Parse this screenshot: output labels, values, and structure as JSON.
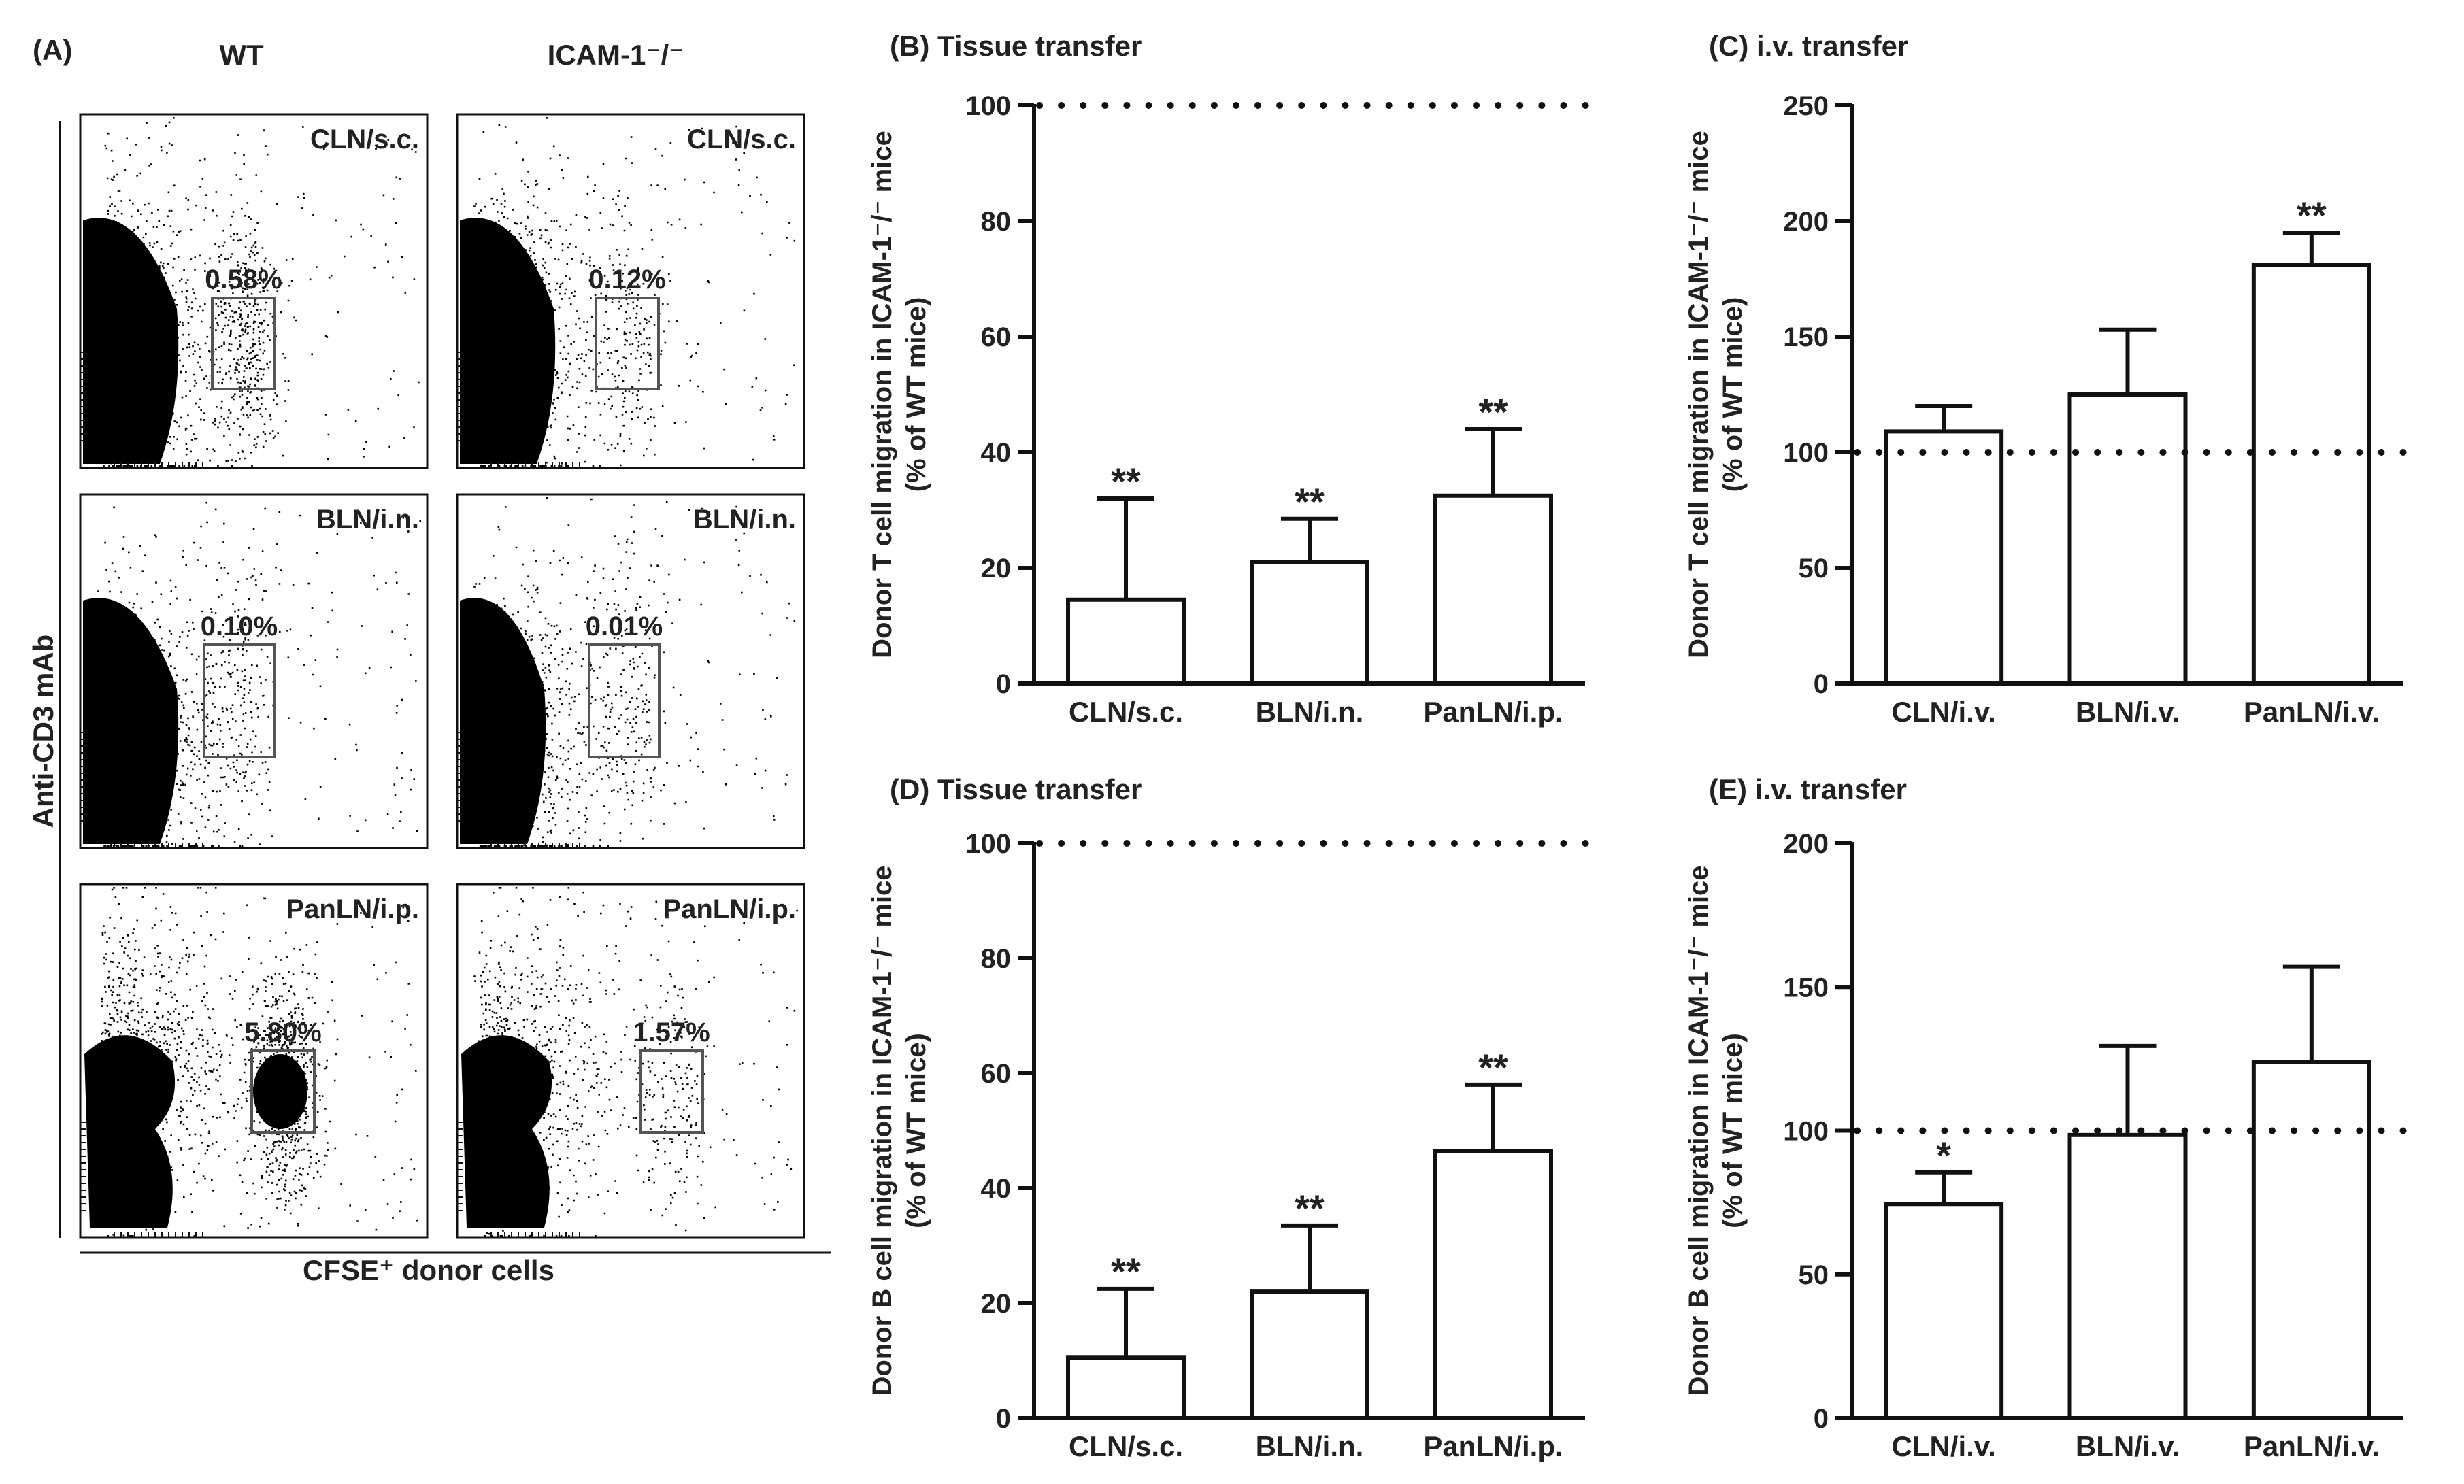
{
  "panel_a": {
    "label": "(A)",
    "col_titles": [
      "WT",
      "ICAM-1⁻/⁻"
    ],
    "ylabel": "Anti-CD3 mAb",
    "xlabel": "CFSE⁺ donor cells",
    "plots": [
      {
        "title": "CLN/s.c.",
        "gate_pct": "0.58%"
      },
      {
        "title": "CLN/s.c.",
        "gate_pct": "0.12%"
      },
      {
        "title": "BLN/i.n.",
        "gate_pct": "0.10%"
      },
      {
        "title": "BLN/i.n.",
        "gate_pct": "0.01%"
      },
      {
        "title": "PanLN/i.p.",
        "gate_pct": "5.80%"
      },
      {
        "title": "PanLN/i.p.",
        "gate_pct": "1.57%"
      }
    ]
  },
  "colors": {
    "bar_fill": "#ffffff",
    "stroke": "#111111",
    "dots": "#000000"
  },
  "chart_data": [
    {
      "id": "B",
      "label": "(B) Tissue transfer",
      "type": "bar",
      "title": "Tissue transfer",
      "ylabel": "Donor T cell migration in ICAM-1⁻/⁻ mice (% of WT mice)",
      "ylabel_lines": [
        "Donor T cell migration in ICAM-1⁻/⁻ mice",
        "(% of WT mice)"
      ],
      "categories": [
        "CLN/s.c.",
        "BLN/i.n.",
        "PanLN/i.p."
      ],
      "values": [
        14.5,
        21,
        32.5
      ],
      "errors": [
        17.5,
        7.5,
        11.5
      ],
      "significance": [
        "**",
        "**",
        "**"
      ],
      "ylim": [
        0,
        100
      ],
      "yticks": [
        0,
        20,
        40,
        60,
        80,
        100
      ],
      "reference_line": 100
    },
    {
      "id": "C",
      "label": "(C) i.v. transfer",
      "type": "bar",
      "title": "i.v. transfer",
      "ylabel": "Donor T cell migration in ICAM-1⁻/⁻ mice (% of WT mice)",
      "ylabel_lines": [
        "Donor T cell migration in ICAM-1⁻/⁻ mice",
        "(% of WT mice)"
      ],
      "categories": [
        "CLN/i.v.",
        "BLN/i.v.",
        "PanLN/i.v."
      ],
      "values": [
        109,
        125,
        181
      ],
      "errors": [
        11,
        28,
        14
      ],
      "significance": [
        "",
        "",
        "**"
      ],
      "ylim": [
        0,
        250
      ],
      "yticks": [
        0,
        50,
        100,
        150,
        200,
        250
      ],
      "reference_line": 100
    },
    {
      "id": "D",
      "label": "(D) Tissue transfer",
      "type": "bar",
      "title": "Tissue transfer",
      "ylabel": "Donor B cell migration in ICAM-1⁻/⁻ mice (% of WT mice)",
      "ylabel_lines": [
        "Donor B cell migration in ICAM-1⁻/⁻ mice",
        "(% of WT mice)"
      ],
      "categories": [
        "CLN/s.c.",
        "BLN/i.n.",
        "PanLN/i.p."
      ],
      "values": [
        10.5,
        22,
        46.5
      ],
      "errors": [
        12,
        11.5,
        11.5
      ],
      "significance": [
        "**",
        "**",
        "**"
      ],
      "ylim": [
        0,
        100
      ],
      "yticks": [
        0,
        20,
        40,
        60,
        80,
        100
      ],
      "reference_line": 100
    },
    {
      "id": "E",
      "label": "(E) i.v. transfer",
      "type": "bar",
      "title": "i.v. transfer",
      "ylabel": "Donor B cell migration in ICAM-1⁻/⁻ mice (% of WT mice)",
      "ylabel_lines": [
        "Donor B cell migration in ICAM-1⁻/⁻ mice",
        "(% of WT mice)"
      ],
      "categories": [
        "CLN/i.v.",
        "BLN/i.v.",
        "PanLN/i.v."
      ],
      "values": [
        74.5,
        98.5,
        124
      ],
      "errors": [
        11,
        31,
        33
      ],
      "significance": [
        "*",
        "",
        ""
      ],
      "ylim": [
        0,
        200
      ],
      "yticks": [
        0,
        50,
        100,
        150,
        200
      ],
      "reference_line": 100
    }
  ]
}
